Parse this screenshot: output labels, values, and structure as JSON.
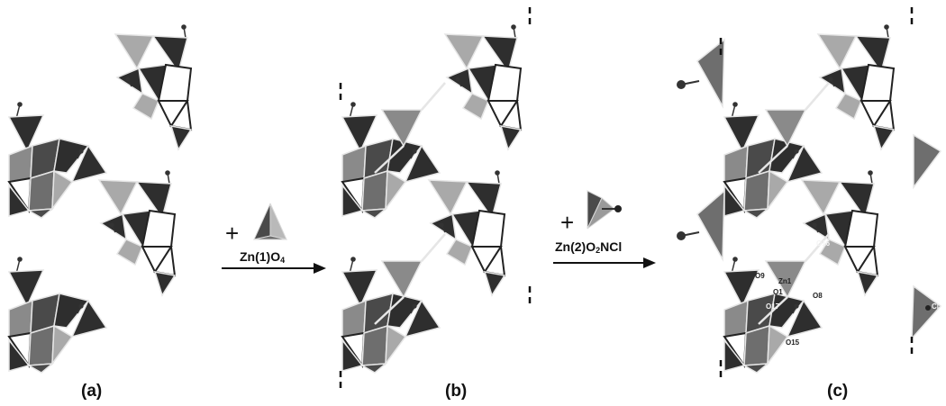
{
  "panels": {
    "a": "(a)",
    "b": "(b)",
    "c": "(c)"
  },
  "step1": {
    "plus": "+",
    "reagent_prefix": "Zn(1)O",
    "reagent_sub": "4",
    "reagent_suffix": ""
  },
  "step2": {
    "plus": "+",
    "reagent_prefix": "Zn(2)O",
    "reagent_sub": "2",
    "reagent_suffix": "NCl"
  },
  "atom_labels": {
    "o9": "O9",
    "zn1": "Zn1",
    "o1": "O1",
    "o8": "O8",
    "o17": "O17",
    "o15": "O15",
    "o16": "O16",
    "cl": "Cl"
  },
  "colors": {
    "dark": "#2e2e2e",
    "mid": "#6e6e6e",
    "light": "#a9a9a9",
    "outline": "#e6e6e6",
    "white_tet": "#ffffff"
  },
  "icons": {
    "tetrahedron": "polyhedron-tetrahedron-icon",
    "arrow": "reaction-arrow-icon",
    "chain_break": "dashed-chain-break-icon"
  }
}
